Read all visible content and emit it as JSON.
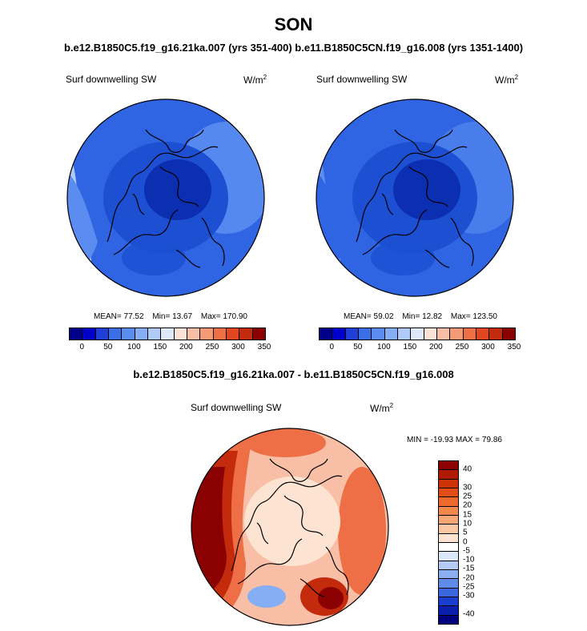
{
  "title": "SON",
  "subtitle": "b.e12.B1850C5.f19_g16.21ka.007 (yrs 351-400) b.e11.B1850C5CN.f19_g16.008 (yrs 1351-1400)",
  "panels": [
    {
      "label": "Surf downwelling SW",
      "units": "W/m",
      "units_exp": "2",
      "stats": {
        "mean_label": "MEAN=",
        "mean": "77.52",
        "min_label": "Min=",
        "min": "13.67",
        "max_label": "Max=",
        "max": "170.90"
      }
    },
    {
      "label": "Surf downwelling SW",
      "units": "W/m",
      "units_exp": "2",
      "stats": {
        "mean_label": "MEAN=",
        "mean": "59.02",
        "min_label": "Min=",
        "min": "12.82",
        "max_label": "Max=",
        "max": "123.50"
      }
    }
  ],
  "abs_colorbar": {
    "colors": [
      "#00008b",
      "#0000cd",
      "#1f3fd6",
      "#3a6ee6",
      "#5b8df0",
      "#86aef5",
      "#b0cbf8",
      "#dde8fb",
      "#fbe2d6",
      "#f9bfa6",
      "#f59a76",
      "#ee6e46",
      "#e04620",
      "#c42a0c",
      "#8b0000"
    ],
    "tick_labels": [
      "0",
      "50",
      "100",
      "150",
      "200",
      "250",
      "300",
      "350"
    ]
  },
  "diff": {
    "title": "b.e12.B1850C5.f19_g16.21ka.007 - b.e11.B1850C5CN.f19_g16.008",
    "label": "Surf downwelling SW",
    "units": "W/m",
    "units_exp": "2",
    "minmax": "MIN = -19.93 MAX =  79.86",
    "colorbar": {
      "colors": [
        "#8b0000",
        "#b01a00",
        "#cc3306",
        "#e04d16",
        "#ed6a2c",
        "#f5894c",
        "#f9a774",
        "#fbc7a3",
        "#fde4d2",
        "#ffffff",
        "#dce7fa",
        "#b4ccf5",
        "#8baeef",
        "#5f8ce8",
        "#3a67de",
        "#1a3fcc",
        "#0a1fab",
        "#000080"
      ],
      "tick_labels": [
        "40",
        "30",
        "25",
        "20",
        "15",
        "10",
        "5",
        "0",
        "-5",
        "-10",
        "-15",
        "-20",
        "-25",
        "-30",
        "-40"
      ]
    }
  },
  "map_colors": {
    "abs_darkest": "#0b2fb0",
    "abs_dark": "#1c4fd2",
    "abs_mid": "#2f65e3",
    "abs_light": "#5b8df0",
    "abs_pale": "#b0cbf8",
    "diff_dark": "#8b0000",
    "diff_red": "#c42a0c",
    "diff_orange": "#ee6e46",
    "diff_peach": "#f9bfa6",
    "diff_pale": "#fde4d2",
    "diff_blue": "#86aef5"
  }
}
